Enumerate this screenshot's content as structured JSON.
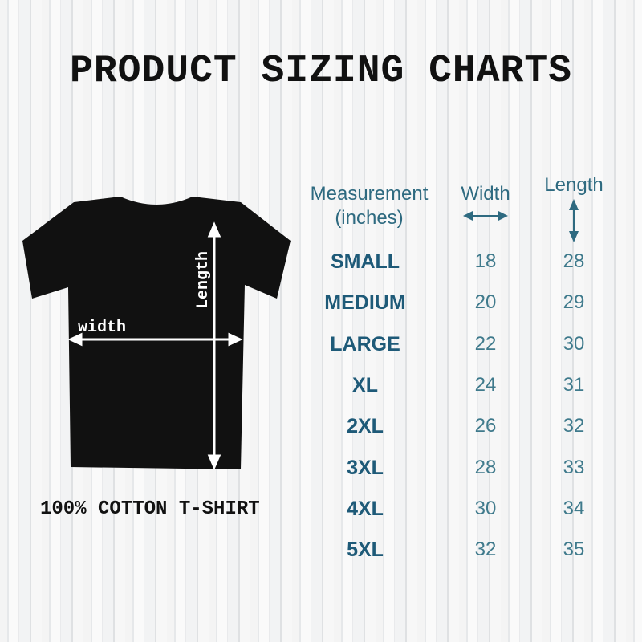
{
  "title": "PRODUCT SIZING CHARTS",
  "caption": "100% COTTON T-SHIRT",
  "shirt": {
    "length_label": "Length",
    "width_label": "width",
    "color": "#111111"
  },
  "table": {
    "header": {
      "measurement": "Measurement",
      "unit": "(inches)",
      "width": "Width",
      "length": "Length",
      "width_icon": "horizontal-double-arrow",
      "length_icon": "vertical-double-arrow"
    },
    "rows": [
      {
        "size": "SMALL",
        "width": "18",
        "length": "28"
      },
      {
        "size": "MEDIUM",
        "width": "20",
        "length": "29"
      },
      {
        "size": "LARGE",
        "width": "22",
        "length": "30"
      },
      {
        "size": "XL",
        "width": "24",
        "length": "31"
      },
      {
        "size": "2XL",
        "width": "26",
        "length": "32"
      },
      {
        "size": "3XL",
        "width": "28",
        "length": "33"
      },
      {
        "size": "4XL",
        "width": "30",
        "length": "34"
      },
      {
        "size": "5XL",
        "width": "32",
        "length": "35"
      }
    ],
    "colors": {
      "header": "#2e6a80",
      "size": "#1e5a78",
      "value": "#3f7a8c"
    }
  }
}
